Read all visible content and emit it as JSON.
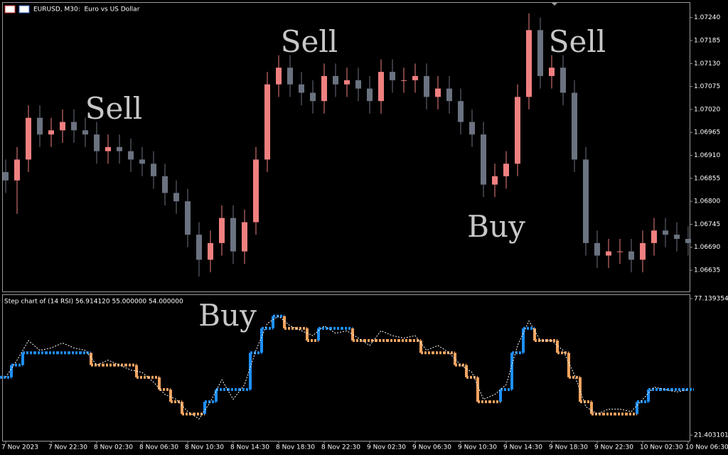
{
  "chart_data": [
    {
      "type": "candlestick",
      "title": "EURUSD, M30:  Euro vs US Dollar",
      "categories": [
        "7 Nov 2023",
        null,
        null,
        null,
        "7 Nov 22:30",
        null,
        null,
        null,
        "8 Nov 02:30",
        null,
        null,
        null,
        "8 Nov 06:30",
        null,
        null,
        null,
        "8 Nov 10:30",
        null,
        null,
        null,
        "8 Nov 14:30",
        null,
        null,
        null,
        "8 Nov 18:30",
        null,
        null,
        null,
        "8 Nov 22:30",
        null,
        null,
        null,
        "9 Nov 02:30",
        null,
        null,
        null,
        "9 Nov 06:30",
        null,
        null,
        null,
        "9 Nov 10:30",
        null,
        null,
        null,
        "9 Nov 14:30",
        null,
        null,
        null,
        "9 Nov 18:30",
        null,
        null,
        null,
        "9 Nov 22:30",
        null,
        null,
        null,
        "10 Nov 02:30",
        null,
        null,
        null,
        "10 Nov 06:30"
      ],
      "open": [
        1.0687,
        1.0685,
        1.069,
        1.07,
        1.0696,
        1.0697,
        1.0699,
        1.0697,
        1.0696,
        1.0692,
        1.0693,
        1.0692,
        1.069,
        1.0689,
        1.0686,
        1.0682,
        1.068,
        1.0672,
        1.0666,
        1.067,
        1.0676,
        1.0668,
        1.0675,
        1.069,
        1.0708,
        1.0712,
        1.0708,
        1.0706,
        1.0704,
        1.071,
        1.0708,
        1.0709,
        1.0707,
        1.0704,
        1.0711,
        1.0709,
        1.0709,
        1.071,
        1.0705,
        1.0707,
        1.0704,
        1.0699,
        1.0696,
        1.0684,
        1.0686,
        1.0689,
        1.0705,
        1.0721,
        1.071,
        1.0712,
        1.0706,
        1.069,
        1.067,
        1.0667,
        1.0668,
        1.0668,
        1.0666,
        1.067,
        1.0673,
        1.0672,
        1.0671
      ],
      "high": [
        1.069,
        1.0693,
        1.0703,
        1.0703,
        1.07,
        1.0702,
        1.0702,
        1.07,
        1.0699,
        1.0696,
        1.0696,
        1.0695,
        1.0693,
        1.0692,
        1.0689,
        1.0685,
        1.0683,
        1.0675,
        1.0673,
        1.0679,
        1.0679,
        1.0678,
        1.0693,
        1.0711,
        1.0715,
        1.0715,
        1.0711,
        1.0709,
        1.0713,
        1.0713,
        1.0712,
        1.0712,
        1.071,
        1.0714,
        1.0714,
        1.0712,
        1.0713,
        1.0713,
        1.071,
        1.071,
        1.0707,
        1.0702,
        1.0699,
        1.0689,
        1.0692,
        1.0708,
        1.0725,
        1.0724,
        1.0715,
        1.0715,
        1.0709,
        1.0693,
        1.0673,
        1.0671,
        1.0671,
        1.0671,
        1.0673,
        1.0676,
        1.0676,
        1.0675,
        1.0674
      ],
      "low": [
        1.0682,
        1.0677,
        1.0687,
        1.0693,
        1.0693,
        1.0694,
        1.0694,
        1.0693,
        1.0689,
        1.0689,
        1.0689,
        1.0687,
        1.0686,
        1.0683,
        1.0679,
        1.0677,
        1.0669,
        1.0662,
        1.0663,
        1.0667,
        1.0665,
        1.0665,
        1.0672,
        1.0687,
        1.0705,
        1.0705,
        1.0703,
        1.0701,
        1.0701,
        1.0705,
        1.0705,
        1.0704,
        1.0701,
        1.0701,
        1.0706,
        1.0706,
        1.0706,
        1.0702,
        1.0702,
        1.0701,
        1.0696,
        1.0693,
        1.0681,
        1.0681,
        1.0683,
        1.0686,
        1.0702,
        1.0707,
        1.0707,
        1.0703,
        1.0687,
        1.0667,
        1.0664,
        1.0664,
        1.0665,
        1.0663,
        1.0663,
        1.0667,
        1.0669,
        1.0668,
        1.0667
      ],
      "close": [
        1.0685,
        1.069,
        1.07,
        1.0696,
        1.0697,
        1.0699,
        1.0697,
        1.0696,
        1.0692,
        1.0693,
        1.0692,
        1.069,
        1.0689,
        1.0686,
        1.0682,
        1.068,
        1.0672,
        1.0666,
        1.067,
        1.0676,
        1.0668,
        1.0675,
        1.069,
        1.0708,
        1.0712,
        1.0708,
        1.0706,
        1.0704,
        1.071,
        1.0708,
        1.0709,
        1.0707,
        1.0704,
        1.0711,
        1.0709,
        1.0709,
        1.071,
        1.0705,
        1.0707,
        1.0704,
        1.0699,
        1.0696,
        1.0684,
        1.0686,
        1.0689,
        1.0705,
        1.0721,
        1.071,
        1.0712,
        1.0706,
        1.069,
        1.067,
        1.0667,
        1.0668,
        1.0668,
        1.0666,
        1.067,
        1.0673,
        1.0672,
        1.0671,
        1.067
      ],
      "up_color": "#f08080",
      "down_color": "#6b7280",
      "ylim": [
        1.06584,
        1.07277
      ],
      "yticks": [
        {
          "value": 1.0724,
          "label": "1.07240"
        },
        {
          "value": 1.07185,
          "label": "1.07185"
        },
        {
          "value": 1.0713,
          "label": "1.07130"
        },
        {
          "value": 1.07075,
          "label": "1.07075"
        },
        {
          "value": 1.0702,
          "label": "1.07020"
        },
        {
          "value": 1.06965,
          "label": "1.06965"
        },
        {
          "value": 1.0691,
          "label": "1.06910"
        },
        {
          "value": 1.06855,
          "label": "1.06855"
        },
        {
          "value": 1.068,
          "label": "1.06800"
        },
        {
          "value": 1.06745,
          "label": "1.06745"
        },
        {
          "value": 1.0669,
          "label": "1.06690"
        },
        {
          "value": 1.06635,
          "label": "1.06635"
        }
      ],
      "annotations": [
        "Sell",
        "Sell",
        "Sell",
        "Buy"
      ]
    },
    {
      "type": "step-rsi",
      "title": "Step chart of (14 RSI) 56.914120 55.000000 54.000000",
      "rsi": [
        45,
        52,
        60,
        56,
        57,
        59,
        57,
        56,
        50,
        52,
        50,
        48,
        47,
        43,
        38,
        36,
        31,
        28,
        35,
        44,
        36,
        42,
        56,
        67,
        70,
        66,
        64,
        62,
        66,
        63,
        64,
        61,
        58,
        64,
        62,
        61,
        62,
        56,
        58,
        55,
        50,
        47,
        36,
        38,
        42,
        58,
        68,
        60,
        60,
        56,
        46,
        33,
        30,
        32,
        32,
        31,
        36,
        41,
        40,
        39,
        40
      ],
      "step": [
        45,
        50,
        55,
        55,
        55,
        55,
        55,
        55,
        50,
        50,
        50,
        50,
        45,
        45,
        40,
        35,
        30,
        30,
        35,
        40,
        40,
        40,
        55,
        65,
        70,
        65,
        65,
        60,
        65,
        65,
        65,
        60,
        60,
        60,
        60,
        60,
        60,
        55,
        55,
        55,
        50,
        45,
        35,
        35,
        40,
        55,
        65,
        60,
        60,
        55,
        45,
        35,
        30,
        30,
        30,
        30,
        35,
        40,
        40,
        40,
        40
      ],
      "rsi_color": "#ffffff",
      "up_color": "#1e90ff",
      "down_color": "#f4a460",
      "ylim": [
        19.08,
        78.88
      ],
      "yticks": [
        77.139354,
        21.403101
      ],
      "annotations": [
        "Buy"
      ]
    }
  ]
}
